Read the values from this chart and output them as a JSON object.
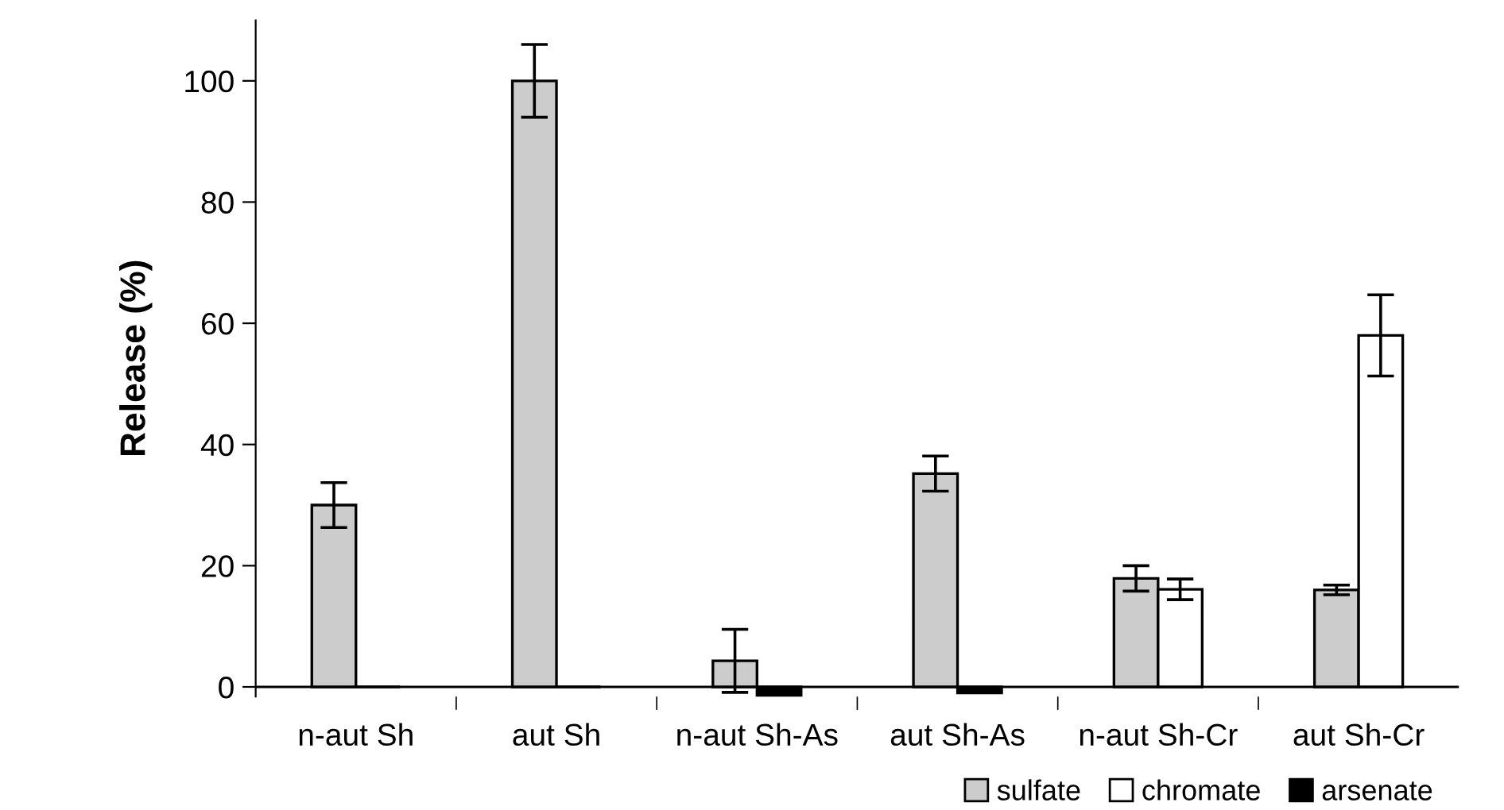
{
  "chart_data": {
    "type": "bar",
    "ylabel": "Release (%)",
    "categories": [
      "n-aut Sh",
      "aut Sh",
      "n-aut Sh-As",
      "aut Sh-As",
      "n-aut Sh-Cr",
      "aut Sh-Cr"
    ],
    "series": [
      {
        "name": "sulfate",
        "color": "#cccccc",
        "values": [
          30,
          100,
          4.3,
          35.2,
          17.9,
          16
        ],
        "errors": [
          3.7,
          6,
          5.2,
          2.9,
          2.1,
          0.8
        ]
      },
      {
        "name": "chromate",
        "color": "#ffffff",
        "values": [
          null,
          null,
          null,
          null,
          16.1,
          58
        ],
        "errors": [
          null,
          null,
          null,
          null,
          1.7,
          6.7
        ]
      },
      {
        "name": "arsenate",
        "color": "#000000",
        "values": [
          0,
          0,
          -1.5,
          -1,
          null,
          null
        ]
      }
    ],
    "ylim": [
      -1.6,
      110
    ],
    "yticks": [
      0,
      20,
      40,
      60,
      80,
      100
    ],
    "grid": false,
    "legend": "bottom right"
  }
}
